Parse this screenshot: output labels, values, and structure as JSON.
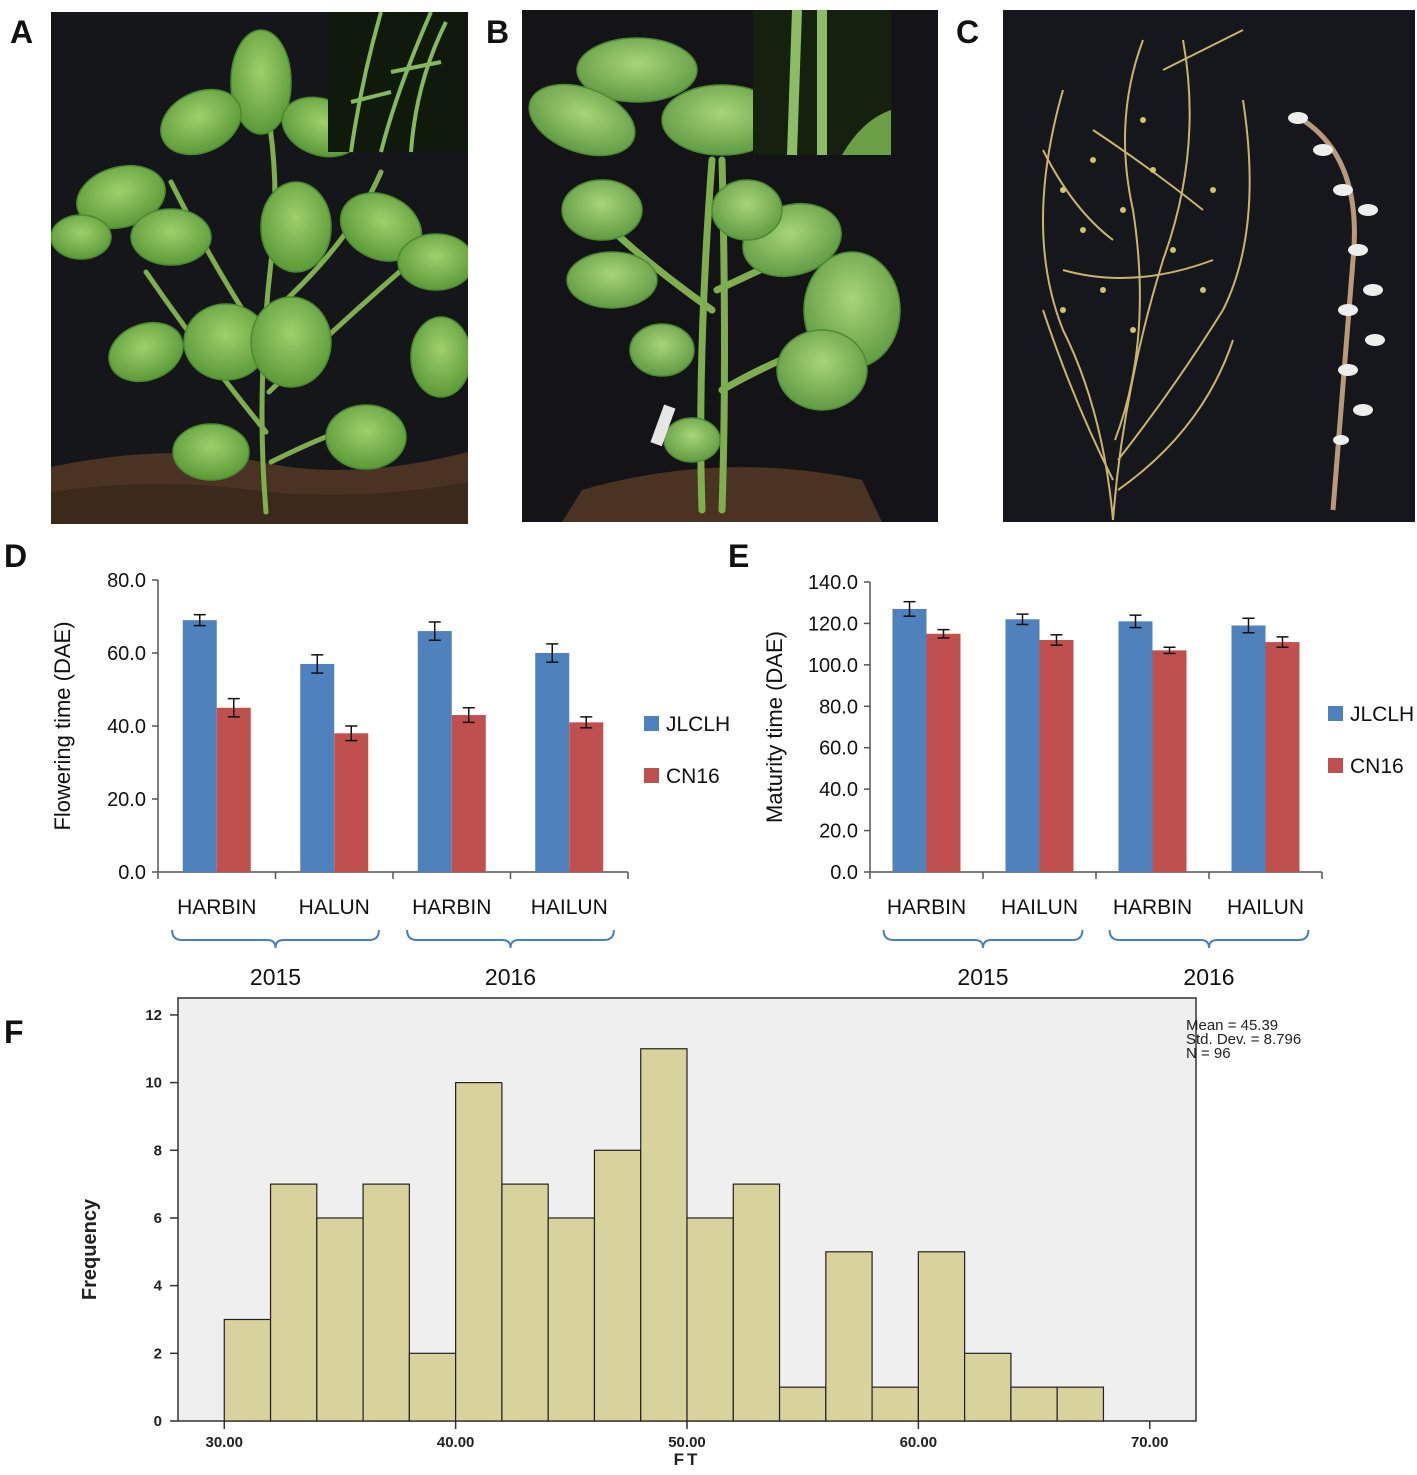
{
  "panels": {
    "a": "A",
    "b": "B",
    "c": "C",
    "d": "D",
    "e": "E",
    "f": "F"
  },
  "colors": {
    "series1": "#4f81bd",
    "series2": "#c0504d",
    "hist_fill": "#d8d29c",
    "hist_stroke": "#222222",
    "hist_bg": "#efefef",
    "bracket": "#4a7fc1"
  },
  "chart_d": {
    "type": "bar",
    "ylabel": "Flowering time (DAE)",
    "categories": [
      "HARBIN",
      "HALUN",
      "HARBIN",
      "HAILUN"
    ],
    "groups": [
      {
        "label": "2015",
        "span": [
          0,
          1
        ]
      },
      {
        "label": "2016",
        "span": [
          2,
          3
        ]
      }
    ],
    "ylim": [
      0,
      80
    ],
    "yticks": [
      "0.0",
      "20.0",
      "40.0",
      "60.0",
      "80.0"
    ],
    "series": [
      {
        "name": "JLCLH",
        "values": [
          69,
          57,
          66,
          60
        ],
        "errors": [
          1.5,
          2.5,
          2.5,
          2.5
        ]
      },
      {
        "name": "CN16",
        "values": [
          45,
          38,
          43,
          41
        ],
        "errors": [
          2.5,
          2,
          2,
          1.5
        ]
      }
    ]
  },
  "chart_e": {
    "type": "bar",
    "ylabel": "Maturity time (DAE)",
    "categories": [
      "HARBIN",
      "HAILUN",
      "HARBIN",
      "HAILUN"
    ],
    "groups": [
      {
        "label": "2015",
        "span": [
          0,
          1
        ]
      },
      {
        "label": "2016",
        "span": [
          2,
          3
        ]
      }
    ],
    "ylim": [
      0,
      140
    ],
    "yticks": [
      "0.0",
      "20.0",
      "40.0",
      "60.0",
      "80.0",
      "100.0",
      "120.0",
      "140.0"
    ],
    "series": [
      {
        "name": "JLCLH",
        "values": [
          127,
          122,
          121,
          119
        ],
        "errors": [
          3.5,
          2.5,
          3,
          3.5
        ]
      },
      {
        "name": "CN16",
        "values": [
          115,
          112,
          107,
          111
        ],
        "errors": [
          2,
          2.5,
          1.5,
          2.5
        ]
      }
    ]
  },
  "chart_data": {
    "type": "bar",
    "xlabel": "FT",
    "ylabel": "Frequency",
    "xlim": [
      28,
      72
    ],
    "ylim": [
      0,
      12.5
    ],
    "xticks": [
      "30.00",
      "40.00",
      "50.00",
      "60.00",
      "70.00"
    ],
    "yticks": [
      "0",
      "2",
      "4",
      "6",
      "8",
      "10",
      "12"
    ],
    "bin_start": 30,
    "bin_width": 2,
    "values": [
      3,
      7,
      6,
      7,
      2,
      10,
      7,
      6,
      8,
      11,
      6,
      7,
      1,
      5,
      1,
      5,
      2,
      1,
      1
    ],
    "stats": [
      "Mean = 45.39",
      "Std. Dev. = 8.796",
      "N = 96"
    ]
  }
}
